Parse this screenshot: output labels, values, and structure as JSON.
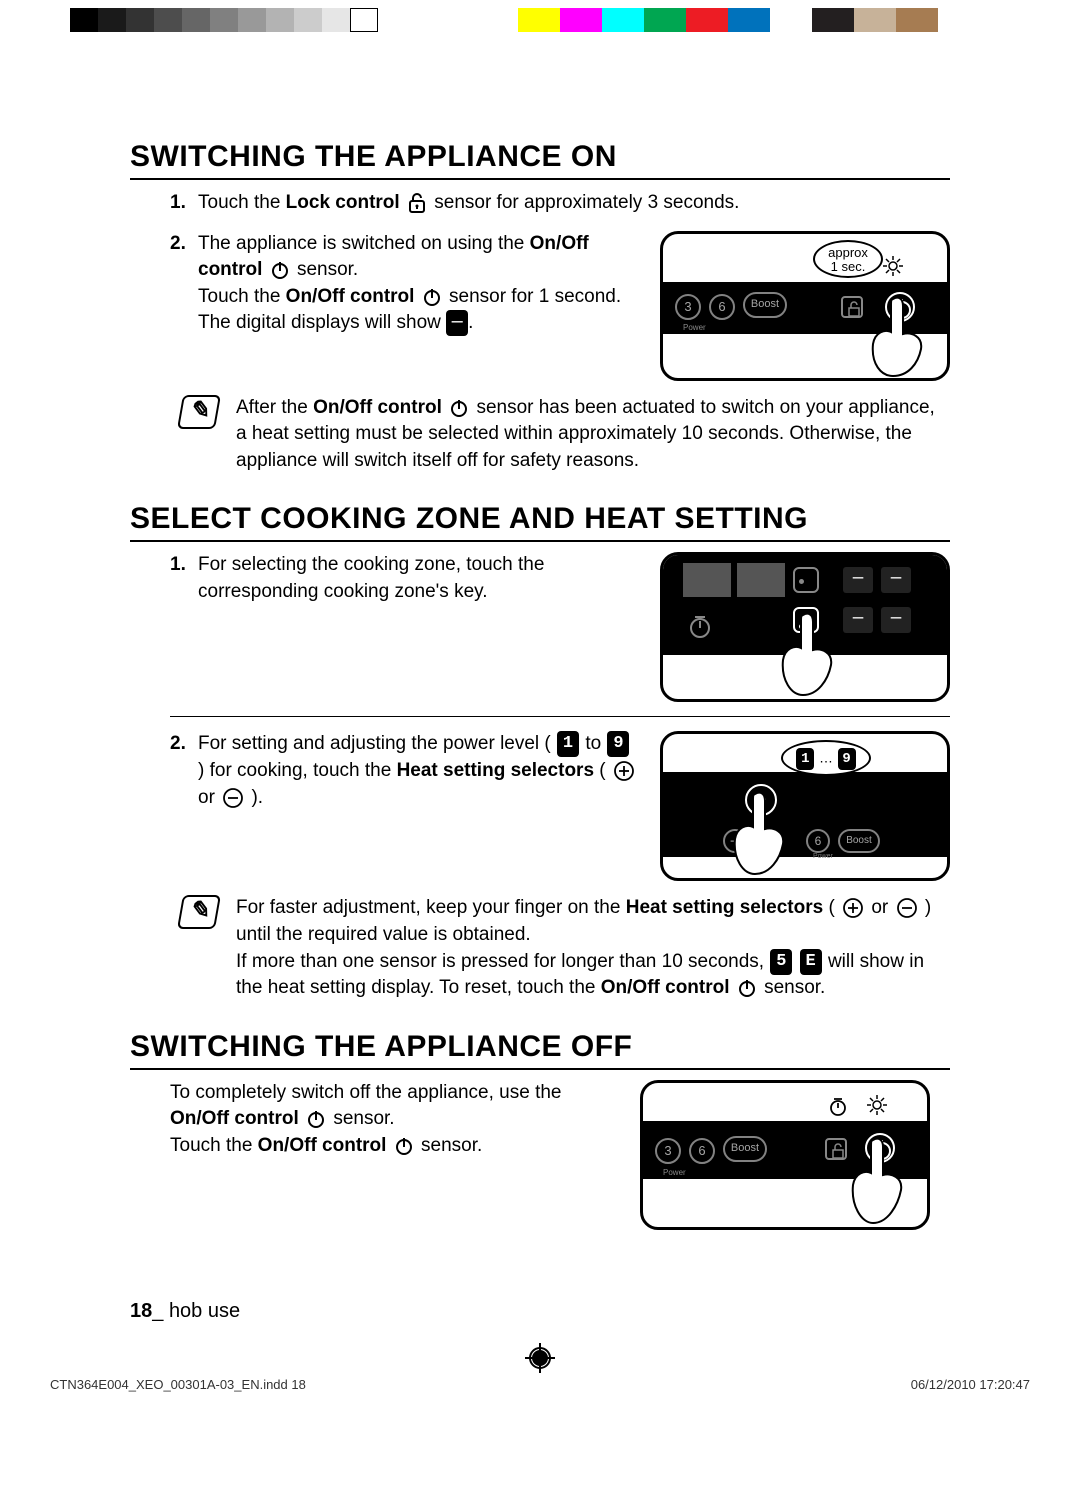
{
  "print_bar": {
    "gray_stops": [
      "#000000",
      "#1a1a1a",
      "#333333",
      "#4d4d4d",
      "#666666",
      "#808080",
      "#999999",
      "#b3b3b3",
      "#cccccc",
      "#e6e6e6",
      "#ffffff"
    ],
    "color_stops": [
      "#ffff00",
      "#ff00ff",
      "#00ffff",
      "#00a651",
      "#ed1c24",
      "#0072bc",
      "#ffffff",
      "#231f20",
      "#c7b299",
      "#a67c52"
    ]
  },
  "sections": {
    "on": {
      "title": "SWITCHING THE APPLIANCE ON",
      "step1_a": "Touch the ",
      "step1_b": "Lock control",
      "step1_c": " sensor for approximately 3 seconds.",
      "step2_a": "The appliance is switched on using the ",
      "step2_b": "On/Off control",
      "step2_c": " sensor.",
      "step2_d": "Touch the ",
      "step2_e": "On/Off control",
      "step2_f": " sensor for 1 second.",
      "step2_g": "The digital displays will show ",
      "note_a": "After the ",
      "note_b": "On/Off control",
      "note_c": " sensor has been actuated to switch on your appliance, a heat setting must be selected within approximately 10 seconds. Otherwise, the appliance will switch itself off for safety reasons.",
      "callout_line1": "approx",
      "callout_line2": "1 sec.",
      "boost_label": "Boost",
      "power_label": "Power"
    },
    "heat": {
      "title": "SELECT COOKING ZONE AND HEAT SETTING",
      "step1": "For selecting the cooking zone, touch the corresponding cooking zone's key.",
      "step2_a": "For setting and adjusting the power level ( ",
      "step2_b": " to ",
      "step2_c": " ) for cooking, touch the ",
      "step2_d": "Heat setting selectors",
      "step2_e": " (",
      "step2_f": " or ",
      "step2_g": ").",
      "note_a": "For faster adjustment, keep your finger on the ",
      "note_b": "Heat setting selectors",
      "note_c": " (",
      "note_d": " or ",
      "note_e": ") until the required value is obtained.",
      "note_f": "If more than one sensor is pressed for longer than 10 seconds, ",
      "note_g": " will show in the heat setting display. To reset, touch the ",
      "note_h": "On/Off control",
      "note_i": " sensor.",
      "digit_low": "1",
      "digit_high": "9",
      "callout_dots": "…",
      "err1": "5",
      "err2": "E",
      "fig_num_6": "6",
      "boost_label": "Boost",
      "power_label": "Power"
    },
    "off": {
      "title": "SWITCHING THE APPLIANCE OFF",
      "p_a": "To completely switch off the appliance, use the ",
      "p_b": "On/Off control",
      "p_c": " sensor.",
      "p_d": "Touch the ",
      "p_e": "On/Off control",
      "p_f": " sensor.",
      "boost_label": "Boost",
      "power_label": "Power",
      "fig_num_3": "3",
      "fig_num_6": "6"
    }
  },
  "footer": {
    "page_num": "18",
    "sep": "_ ",
    "section": "hob use"
  },
  "print_footer": {
    "file": "CTN364E004_XEO_00301A-03_EN.indd   18",
    "stamp": "06/12/2010   17:20:47"
  },
  "icons": {
    "lock_color": "#000000",
    "circle_color": "#000000"
  }
}
